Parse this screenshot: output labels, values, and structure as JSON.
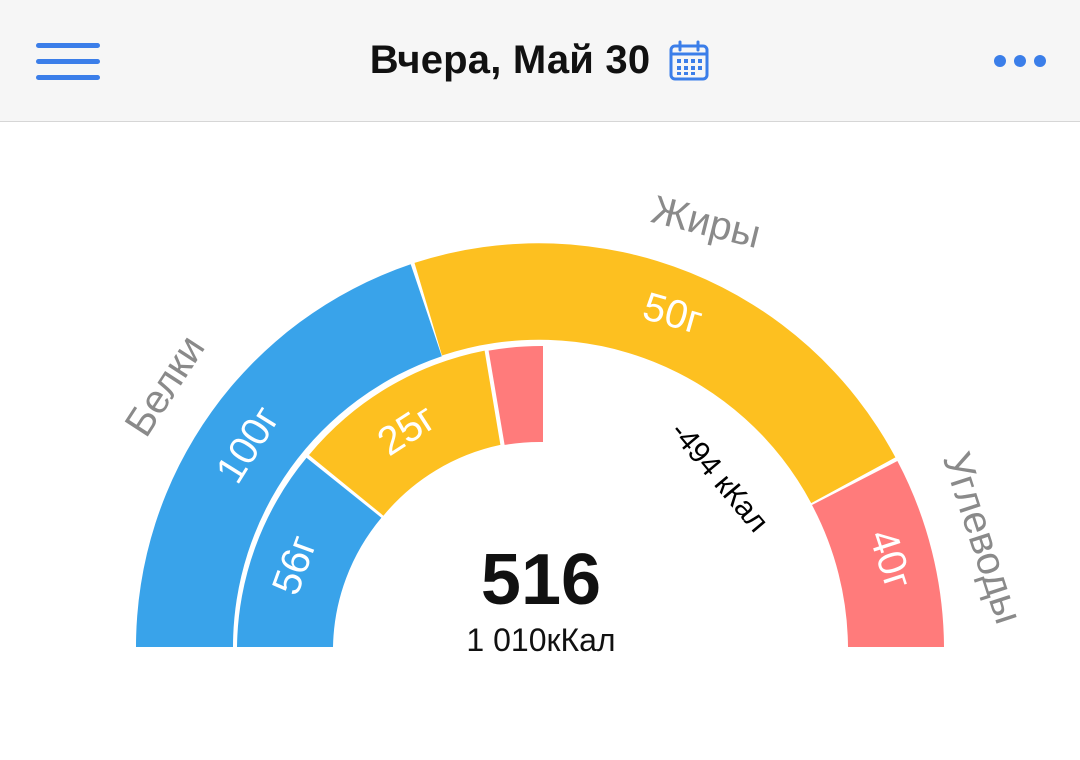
{
  "header": {
    "title": "Вчера, Май 30",
    "menu_icon": "hamburger-menu-icon",
    "calendar_icon": "calendar-icon",
    "more_icon": "more-dots-icon",
    "accent_color": "#3b7ee9"
  },
  "macros": {
    "protein": {
      "label": "Белки",
      "target": "100г",
      "consumed": "56г",
      "color": "#39a3ea"
    },
    "fat": {
      "label": "Жиры",
      "target": "50г",
      "consumed": "25г",
      "color": "#fdc020"
    },
    "carbs": {
      "label": "Углеводы",
      "target": "40г",
      "color": "#ff7b7b"
    }
  },
  "summary": {
    "calories_consumed": "516",
    "calories_target": "1 010кКал",
    "calories_remaining": "-494 кКал"
  }
}
